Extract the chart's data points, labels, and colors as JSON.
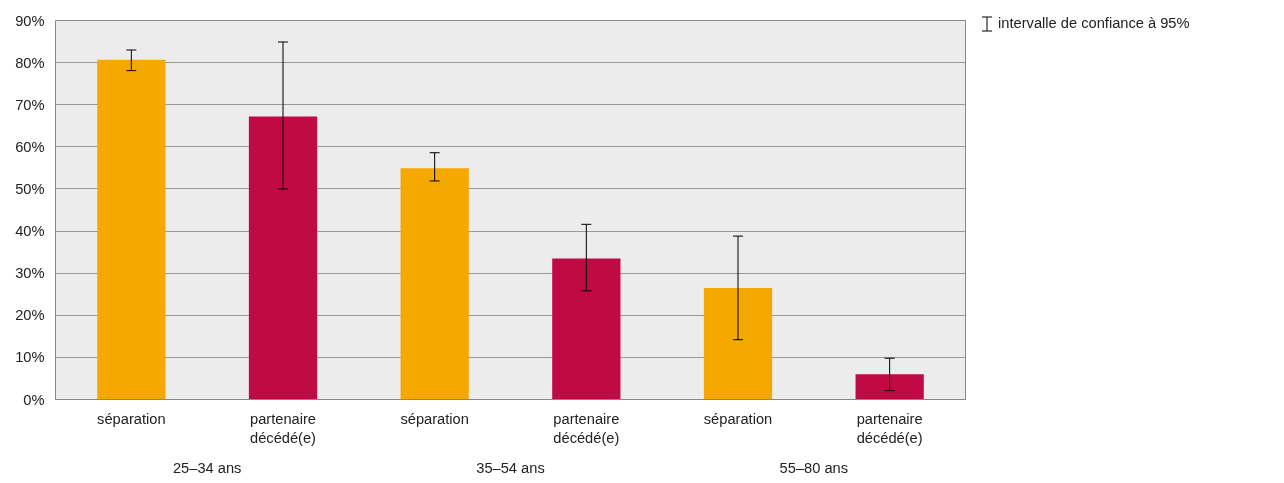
{
  "chart_data": {
    "type": "bar",
    "categories": [
      "séparation",
      "partenaire décédé(e)",
      "séparation",
      "partenaire décédé(e)",
      "séparation",
      "partenaire décédé(e)"
    ],
    "values": [
      80.7,
      67.2,
      54.9,
      33.5,
      26.5,
      6.0
    ],
    "colors": [
      "#f5a800",
      "#c00a45",
      "#f5a800",
      "#c00a45",
      "#f5a800",
      "#c00a45"
    ],
    "errors": [
      [
        78.1,
        83.0
      ],
      [
        50.0,
        84.9
      ],
      [
        51.9,
        58.6
      ],
      [
        25.8,
        41.6
      ],
      [
        14.2,
        38.8
      ],
      [
        2.1,
        9.8
      ]
    ],
    "ylim": [
      0,
      90
    ],
    "yticks": [
      {
        "value": 0,
        "label": "0%"
      },
      {
        "value": 10,
        "label": "10%"
      },
      {
        "value": 20,
        "label": "20%"
      },
      {
        "value": 30,
        "label": "30%"
      },
      {
        "value": 40,
        "label": "40%"
      },
      {
        "value": 50,
        "label": "50%"
      },
      {
        "value": 60,
        "label": "60%"
      },
      {
        "value": 70,
        "label": "70%"
      },
      {
        "value": 80,
        "label": "80%"
      },
      {
        "value": 90,
        "label": "90%"
      }
    ],
    "grid": "y",
    "legend_title": "intervalle de confiance à 95%",
    "annotations": [
      "25–34 ans",
      "35–54 ans",
      "55–80 ans"
    ]
  }
}
